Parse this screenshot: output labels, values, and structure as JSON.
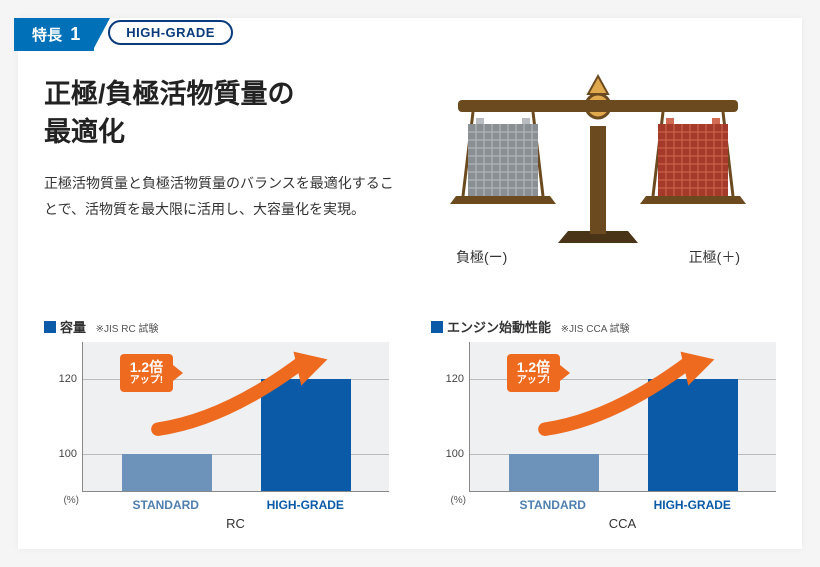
{
  "header": {
    "feature_label": "特長",
    "feature_number": "1",
    "feature_bg": "#0070b8",
    "grade_pill": "HIGH-GRADE",
    "pill_border": "#0a3b7c",
    "pill_text": "#0a3b7c"
  },
  "main": {
    "title_line1": "正極/負極活物質量の",
    "title_line2": "最適化",
    "description": "正極活物質量と負極活物質量のバランスを最適化することで、活物質を最大限に活用し、大容量化を実現。",
    "title_color": "#222222",
    "desc_color": "#333333"
  },
  "scale": {
    "left_label": "負極(ー)",
    "right_label": "正極(＋)",
    "frame_color": "#6b4a1f",
    "frame_highlight": "#e0a94e",
    "base_color": "#4a3417",
    "battery_neg_body": "#8a8f94",
    "battery_neg_grid": "#b8bcc0",
    "battery_pos_body": "#a53a2a",
    "battery_pos_grid": "#d06a52"
  },
  "charts": {
    "accent_color": "#0a5aa8",
    "plot_bg": "#eef0f2",
    "grid_color": "#bbbbbb",
    "badge_bg": "#ee6a1f",
    "arrow_color": "#ee6a1f",
    "ylim": [
      90,
      130
    ],
    "yticks": [
      100,
      120
    ],
    "yunit": "(%)",
    "items": [
      {
        "title": "容量",
        "note": "※JIS RC 試験",
        "sublabel": "RC",
        "categories": [
          "STANDARD",
          "HIGH-GRADE"
        ],
        "cat_colors": [
          "#4f7fb0",
          "#0a5aa8"
        ],
        "values": [
          100,
          120
        ],
        "bar_colors": [
          "#6e93bb",
          "#0a5aa8"
        ],
        "badge_main": "1.2倍",
        "badge_sub": "アップ!"
      },
      {
        "title": "エンジン始動性能",
        "note": "※JIS CCA 試験",
        "sublabel": "CCA",
        "categories": [
          "STANDARD",
          "HIGH-GRADE"
        ],
        "cat_colors": [
          "#4f7fb0",
          "#0a5aa8"
        ],
        "values": [
          100,
          120
        ],
        "bar_colors": [
          "#6e93bb",
          "#0a5aa8"
        ],
        "badge_main": "1.2倍",
        "badge_sub": "アップ!"
      }
    ]
  }
}
